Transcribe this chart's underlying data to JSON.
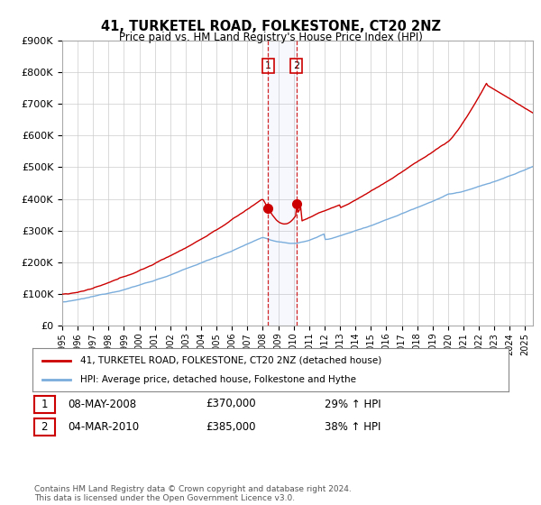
{
  "title": "41, TURKETEL ROAD, FOLKESTONE, CT20 2NZ",
  "subtitle": "Price paid vs. HM Land Registry's House Price Index (HPI)",
  "legend_line1": "41, TURKETEL ROAD, FOLKESTONE, CT20 2NZ (detached house)",
  "legend_line2": "HPI: Average price, detached house, Folkestone and Hythe",
  "footnote": "Contains HM Land Registry data © Crown copyright and database right 2024.\nThis data is licensed under the Open Government Licence v3.0.",
  "transaction1_label": "1",
  "transaction1_date": "08-MAY-2008",
  "transaction1_price": "£370,000",
  "transaction1_hpi": "29% ↑ HPI",
  "transaction2_label": "2",
  "transaction2_date": "04-MAR-2010",
  "transaction2_price": "£385,000",
  "transaction2_hpi": "38% ↑ HPI",
  "hpi_color": "#7aaddc",
  "price_color": "#cc0000",
  "marker1_x": 2008.35,
  "marker2_x": 2010.17,
  "marker1_y": 370000,
  "marker2_y": 385000,
  "ylim": [
    0,
    900000
  ],
  "xlim_start": 1995.0,
  "xlim_end": 2025.5
}
